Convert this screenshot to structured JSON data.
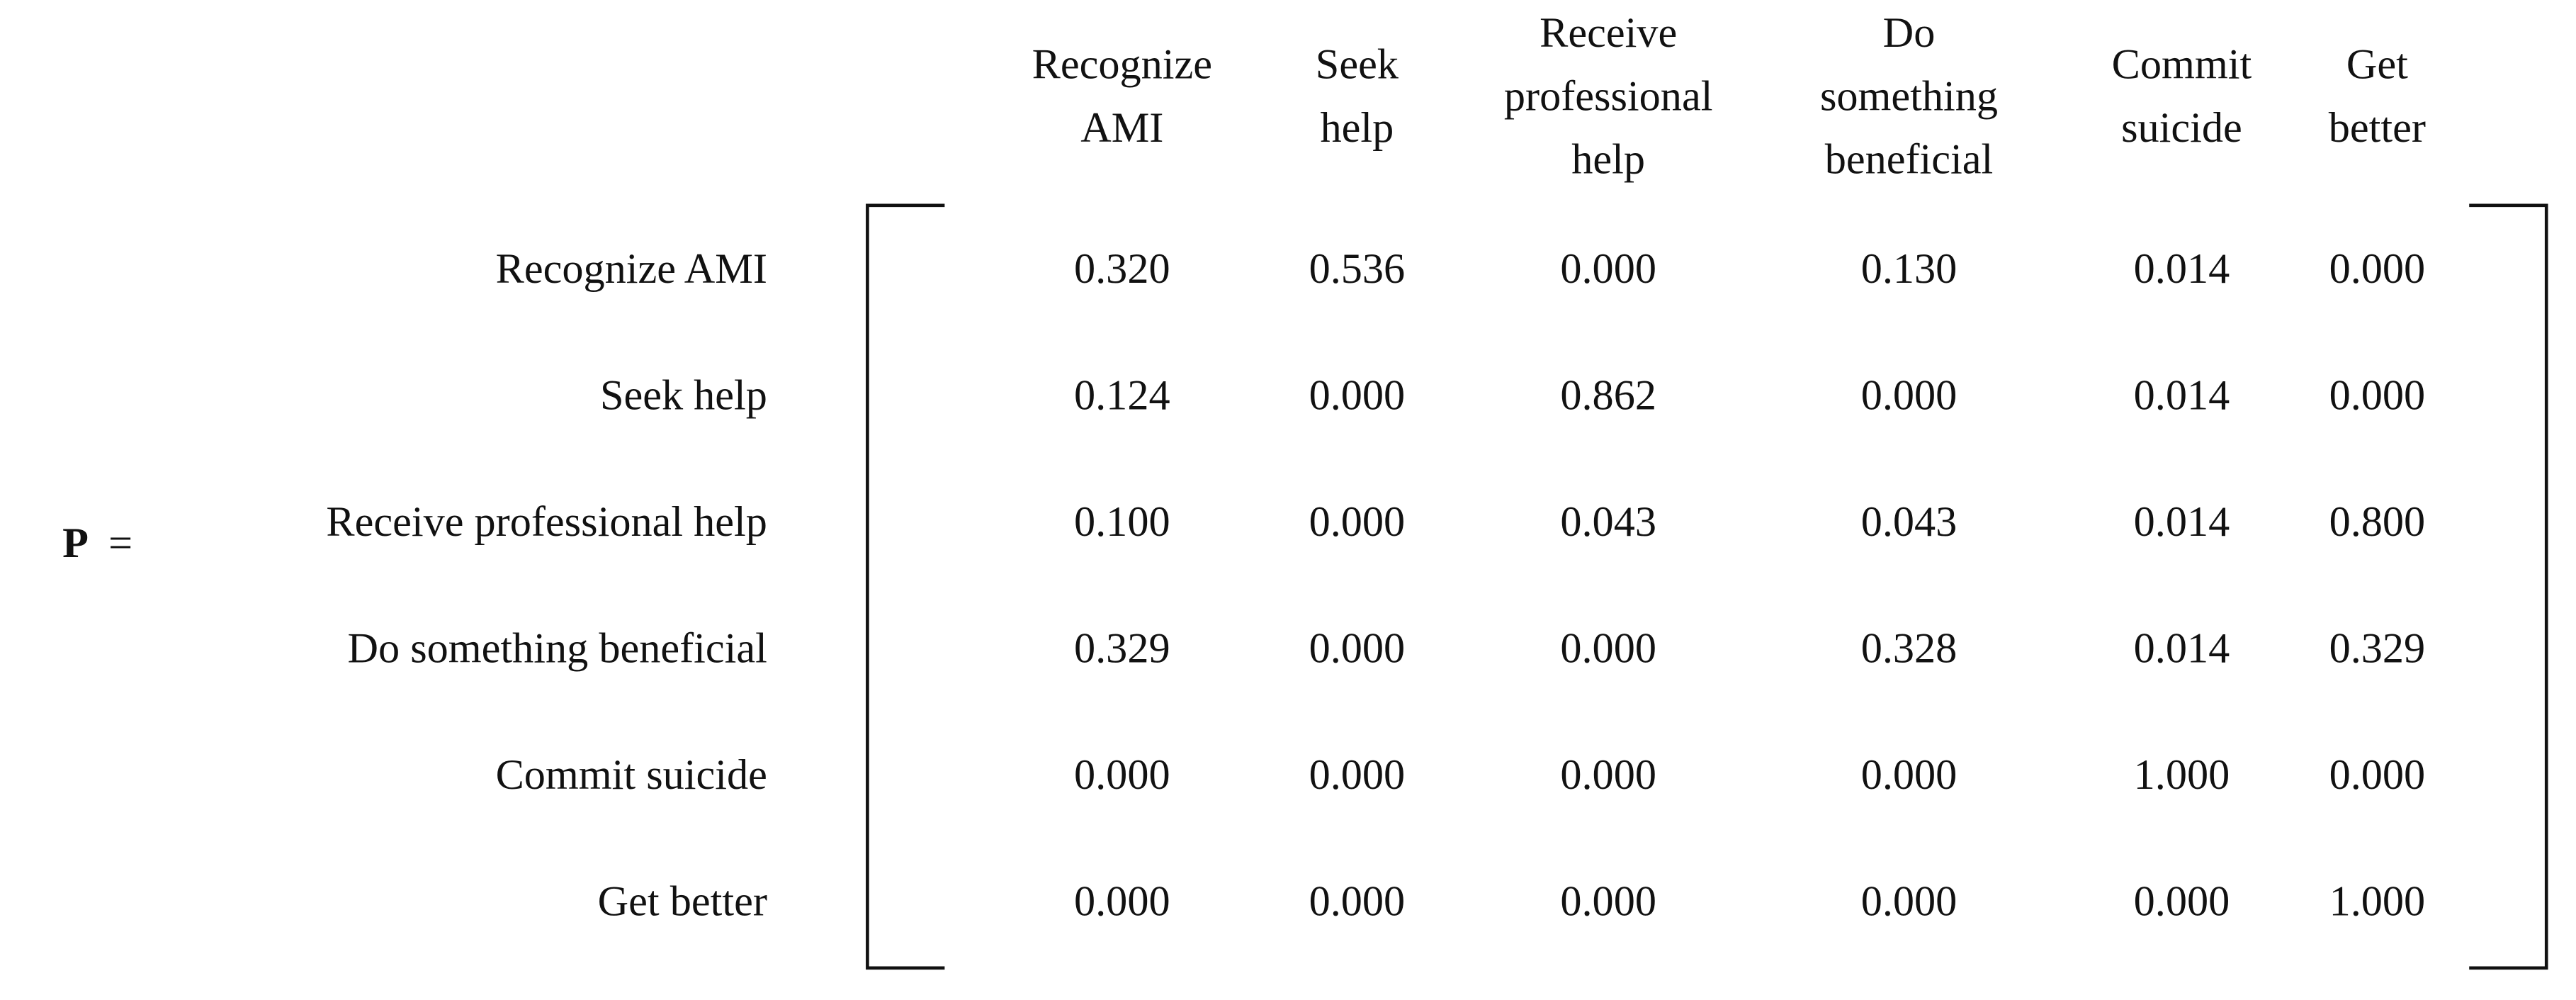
{
  "matrix": {
    "label": "P",
    "equals": "=",
    "columns": [
      [
        "Recognize",
        "AMI"
      ],
      [
        "Seek",
        "help"
      ],
      [
        "Receive",
        "professional",
        "help"
      ],
      [
        "Do",
        "something",
        "beneficial"
      ],
      [
        "Commit",
        "suicide"
      ],
      [
        "Get",
        "better"
      ]
    ],
    "rows": [
      {
        "label": "Recognize AMI",
        "values": [
          "0.320",
          "0.536",
          "0.000",
          "0.130",
          "0.014",
          "0.000"
        ]
      },
      {
        "label": "Seek help",
        "values": [
          "0.124",
          "0.000",
          "0.862",
          "0.000",
          "0.014",
          "0.000"
        ]
      },
      {
        "label": "Receive professional help",
        "values": [
          "0.100",
          "0.000",
          "0.043",
          "0.043",
          "0.014",
          "0.800"
        ]
      },
      {
        "label": "Do something beneficial",
        "values": [
          "0.329",
          "0.000",
          "0.000",
          "0.328",
          "0.014",
          "0.329"
        ]
      },
      {
        "label": "Commit suicide",
        "values": [
          "0.000",
          "0.000",
          "0.000",
          "0.000",
          "1.000",
          "0.000"
        ]
      },
      {
        "label": "Get better",
        "values": [
          "0.000",
          "0.000",
          "0.000",
          "0.000",
          "0.000",
          "1.000"
        ]
      }
    ]
  }
}
